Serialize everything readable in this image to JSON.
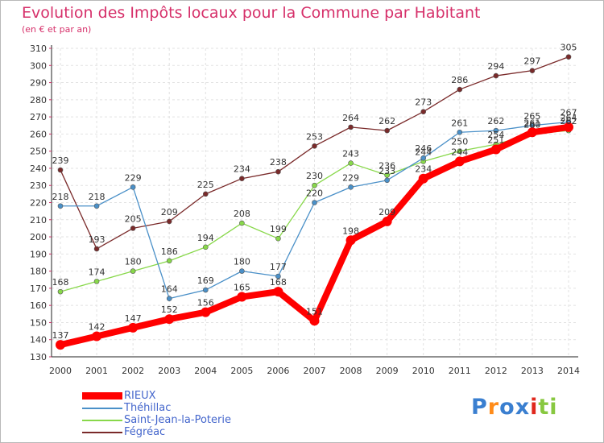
{
  "chart_data": {
    "type": "line",
    "title": "Evolution des Impôts locaux pour la Commune par Habitant",
    "subtitle": "(en € et par an)",
    "xlabel": "",
    "ylabel": "",
    "x": [
      "2000",
      "2001",
      "2002",
      "2003",
      "2004",
      "2005",
      "2006",
      "2007",
      "2008",
      "2009",
      "2010",
      "2011",
      "2012",
      "2013",
      "2014"
    ],
    "ylim": [
      130,
      310
    ],
    "ytick_step": 10,
    "grid": true,
    "legend_position": "bottom-left",
    "series": [
      {
        "name": "RIEUX",
        "color": "#ff0000",
        "values": [
          137,
          142,
          147,
          152,
          156,
          165,
          168,
          151,
          198,
          209,
          234,
          244,
          251,
          261,
          264
        ],
        "labels": [
          "137",
          "142",
          "147",
          "152",
          "156",
          "165",
          "168",
          "151",
          "198",
          "209",
          "234",
          "244",
          "251",
          "261",
          "264"
        ]
      },
      {
        "name": "Théhillac",
        "color": "#4a90c8",
        "values": [
          218,
          218,
          229,
          164,
          169,
          180,
          177,
          220,
          229,
          233,
          246,
          261,
          262,
          265,
          267
        ],
        "labels": [
          "218",
          "218",
          "229",
          "164",
          "169",
          "180",
          "177",
          "220",
          "229",
          "233",
          "246",
          "261",
          "262",
          "265",
          "267"
        ]
      },
      {
        "name": "Saint-Jean-la-Poterie",
        "color": "#88d84a",
        "values": [
          168,
          174,
          180,
          186,
          194,
          208,
          199,
          230,
          243,
          236,
          244,
          250,
          254,
          260,
          262
        ],
        "labels": [
          "168",
          "174",
          "180",
          "186",
          "194",
          "208",
          "199",
          "230",
          "243",
          "236",
          "244",
          "250",
          "254",
          "260",
          "262"
        ]
      },
      {
        "name": "Fégréac",
        "color": "#7a2a2a",
        "values": [
          239,
          193,
          205,
          209,
          225,
          234,
          238,
          253,
          264,
          262,
          273,
          286,
          294,
          297,
          305
        ],
        "labels": [
          "239",
          "193",
          "205",
          "209",
          "225",
          "234",
          "238",
          "253",
          "264",
          "262",
          "273",
          "286",
          "294",
          "297",
          "305"
        ]
      }
    ]
  },
  "logo": {
    "letters": [
      "P",
      "r",
      "o",
      "x",
      "i",
      "t",
      "i"
    ],
    "colors": [
      "#3a7fd0",
      "#ff8c1a",
      "#3a7fd0",
      "#3a7fd0",
      "#e0281e",
      "#88c840",
      "#88c840"
    ]
  }
}
